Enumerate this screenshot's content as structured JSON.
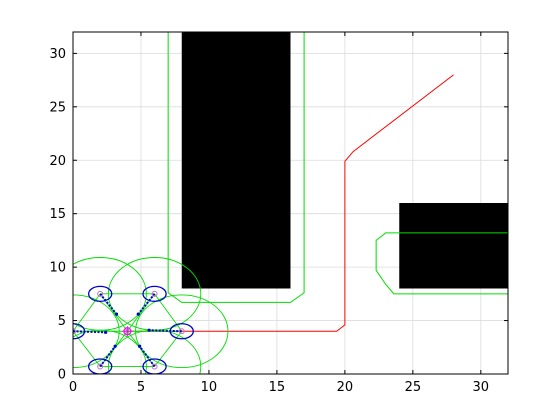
{
  "chart_data": {
    "type": "plot",
    "title": "",
    "xlabel": "",
    "ylabel": "",
    "xlim": [
      0,
      32
    ],
    "ylim": [
      0,
      32
    ],
    "grid": true,
    "xticks": [
      0,
      5,
      10,
      15,
      20,
      25,
      30
    ],
    "yticks": [
      0,
      5,
      10,
      15,
      20,
      25,
      30
    ],
    "obstacles": [
      {
        "x": [
          8,
          16
        ],
        "y": [
          8,
          32
        ],
        "color": "#000000"
      },
      {
        "x": [
          24,
          32
        ],
        "y": [
          8,
          16
        ],
        "color": "#000000"
      }
    ],
    "inflated_obstacles": [
      {
        "points": [
          [
            7,
            32
          ],
          [
            7,
            7.6
          ],
          [
            8,
            6.7
          ],
          [
            16,
            6.7
          ],
          [
            17,
            7.6
          ],
          [
            17,
            32
          ]
        ],
        "color": "#00dd00"
      },
      {
        "points": [
          [
            32,
            13.2
          ],
          [
            23,
            13.2
          ],
          [
            22.3,
            12.5
          ],
          [
            22.3,
            9.7
          ],
          [
            23,
            8.4
          ],
          [
            23.6,
            7.5
          ],
          [
            32,
            7.5
          ]
        ],
        "color": "#00dd00"
      }
    ],
    "path": {
      "color": "#ff0000",
      "points": [
        [
          4,
          4
        ],
        [
          19.4,
          4
        ],
        [
          20,
          4.6
        ],
        [
          20,
          19.9
        ],
        [
          20.6,
          20.8
        ],
        [
          28,
          28
        ]
      ]
    },
    "formation": {
      "center": [
        4,
        4
      ],
      "agents": [
        [
          0,
          4
        ],
        [
          2,
          0.7
        ],
        [
          6,
          0.7
        ],
        [
          8,
          4
        ],
        [
          6,
          7.5
        ],
        [
          2,
          7.5
        ]
      ],
      "agent_ellipse_radii": [
        0.85,
        0.7
      ],
      "sensing_radius": 3.4,
      "agent_color": "#0000cc",
      "ring_color": "#00dd00",
      "center_color": "#ff00ff",
      "sensor_rays": [
        [
          [
            0,
            4
          ],
          [
            2.4,
            3.9
          ]
        ],
        [
          [
            2,
            0.7
          ],
          [
            3.1,
            2.6
          ]
        ],
        [
          [
            6,
            0.7
          ],
          [
            4.9,
            2.6
          ]
        ],
        [
          [
            8,
            4
          ],
          [
            5.6,
            4.1
          ]
        ],
        [
          [
            6,
            7.5
          ],
          [
            4.8,
            5.6
          ]
        ],
        [
          [
            2,
            7.5
          ],
          [
            3.2,
            5.6
          ]
        ]
      ]
    }
  }
}
